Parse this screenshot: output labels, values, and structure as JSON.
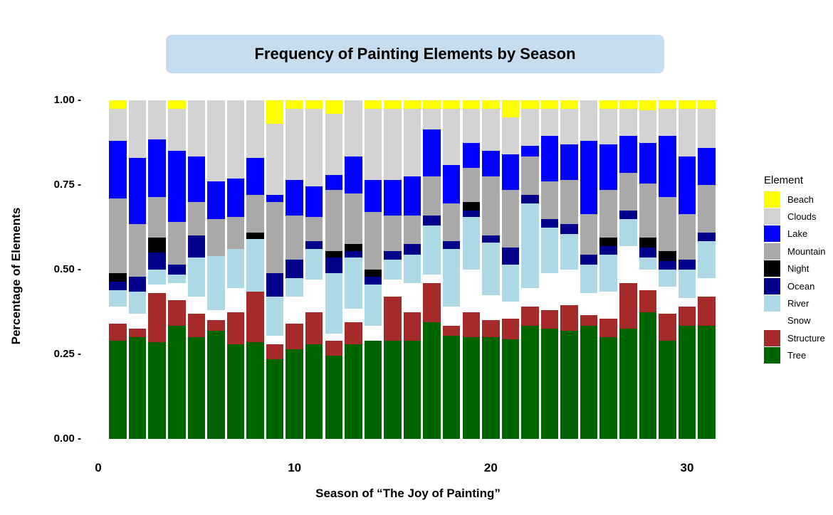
{
  "chart_data": {
    "type": "bar",
    "stacked": true,
    "normalized": true,
    "title": "Frequency of Painting Elements by Season",
    "xlabel": "Season of “The Joy of Painting”",
    "ylabel": "Percentage of Elements",
    "ylim": [
      0,
      1
    ],
    "xlim": [
      0,
      31
    ],
    "yticks": [
      "0.00",
      "0.25",
      "0.50",
      "0.75",
      "1.00"
    ],
    "xticks": [
      "0",
      "10",
      "20",
      "30"
    ],
    "grid": false,
    "legend_title": "Element",
    "legend_position": "right",
    "elements": [
      "Tree",
      "Structure",
      "Snow",
      "River",
      "Ocean",
      "Night",
      "Mountain",
      "Lake",
      "Clouds",
      "Beach"
    ],
    "legend_order": [
      "Beach",
      "Clouds",
      "Lake",
      "Mountain",
      "Night",
      "Ocean",
      "River",
      "Snow",
      "Structure",
      "Tree"
    ],
    "colors": {
      "Beach": "#ffff00",
      "Clouds": "#d3d3d3",
      "Lake": "#0000ff",
      "Mountain": "#a9a9a9",
      "Night": "#000000",
      "Ocean": "#00008b",
      "River": "#add8e6",
      "Snow": "#ffffff",
      "Structure": "#a52a2a",
      "Tree": "#006400"
    },
    "categories": [
      1,
      2,
      3,
      4,
      5,
      6,
      7,
      8,
      9,
      10,
      11,
      12,
      13,
      14,
      15,
      16,
      17,
      18,
      19,
      20,
      21,
      22,
      23,
      24,
      25,
      26,
      27,
      28,
      29,
      30,
      31
    ],
    "series": [
      {
        "name": "Tree",
        "values": [
          0.29,
          0.3,
          0.285,
          0.335,
          0.3,
          0.32,
          0.28,
          0.285,
          0.235,
          0.265,
          0.28,
          0.245,
          0.28,
          0.29,
          0.29,
          0.29,
          0.345,
          0.305,
          0.3,
          0.3,
          0.295,
          0.335,
          0.325,
          0.32,
          0.335,
          0.3,
          0.325,
          0.375,
          0.29,
          0.335,
          0.335
        ]
      },
      {
        "name": "Structure",
        "values": [
          0.05,
          0.025,
          0.145,
          0.075,
          0.07,
          0.03,
          0.095,
          0.15,
          0.045,
          0.075,
          0.095,
          0.045,
          0.065,
          0.0,
          0.13,
          0.085,
          0.115,
          0.03,
          0.075,
          0.05,
          0.06,
          0.055,
          0.055,
          0.075,
          0.03,
          0.055,
          0.135,
          0.065,
          0.08,
          0.055,
          0.085
        ]
      },
      {
        "name": "Snow",
        "values": [
          0.05,
          0.045,
          0.025,
          0.05,
          0.05,
          0.03,
          0.07,
          0.0,
          0.025,
          0.08,
          0.095,
          0.02,
          0.04,
          0.045,
          0.05,
          0.085,
          0.025,
          0.055,
          0.125,
          0.075,
          0.05,
          0.055,
          0.11,
          0.105,
          0.065,
          0.08,
          0.11,
          0.06,
          0.08,
          0.025,
          0.055
        ]
      },
      {
        "name": "River",
        "values": [
          0.05,
          0.065,
          0.045,
          0.025,
          0.115,
          0.16,
          0.115,
          0.155,
          0.115,
          0.055,
          0.09,
          0.18,
          0.15,
          0.12,
          0.06,
          0.085,
          0.145,
          0.17,
          0.155,
          0.155,
          0.11,
          0.25,
          0.135,
          0.105,
          0.085,
          0.11,
          0.08,
          0.035,
          0.05,
          0.085,
          0.11
        ]
      },
      {
        "name": "Ocean",
        "values": [
          0.025,
          0.045,
          0.05,
          0.03,
          0.065,
          0.0,
          0.0,
          0.0,
          0.07,
          0.055,
          0.025,
          0.045,
          0.02,
          0.025,
          0.025,
          0.03,
          0.03,
          0.025,
          0.02,
          0.02,
          0.05,
          0.025,
          0.025,
          0.03,
          0.03,
          0.025,
          0.025,
          0.03,
          0.025,
          0.03,
          0.025
        ]
      },
      {
        "name": "Night",
        "values": [
          0.025,
          0.0,
          0.045,
          0.0,
          0.0,
          0.0,
          0.0,
          0.02,
          0.0,
          0.0,
          0.0,
          0.02,
          0.02,
          0.02,
          0.0,
          0.0,
          0.0,
          0.0,
          0.025,
          0.0,
          0.0,
          0.0,
          0.0,
          0.0,
          0.0,
          0.025,
          0.0,
          0.03,
          0.03,
          0.0,
          0.0
        ]
      },
      {
        "name": "Mountain",
        "values": [
          0.22,
          0.155,
          0.12,
          0.125,
          0.1,
          0.11,
          0.095,
          0.11,
          0.21,
          0.13,
          0.07,
          0.18,
          0.15,
          0.17,
          0.105,
          0.085,
          0.115,
          0.11,
          0.1,
          0.175,
          0.17,
          0.115,
          0.11,
          0.13,
          0.12,
          0.14,
          0.11,
          0.16,
          0.16,
          0.135,
          0.14
        ]
      },
      {
        "name": "Lake",
        "values": [
          0.17,
          0.195,
          0.17,
          0.21,
          0.135,
          0.11,
          0.115,
          0.11,
          0.02,
          0.105,
          0.09,
          0.045,
          0.11,
          0.095,
          0.105,
          0.115,
          0.14,
          0.115,
          0.075,
          0.075,
          0.105,
          0.03,
          0.135,
          0.105,
          0.215,
          0.135,
          0.11,
          0.12,
          0.18,
          0.17,
          0.11
        ]
      },
      {
        "name": "Clouds",
        "values": [
          0.095,
          0.17,
          0.115,
          0.125,
          0.165,
          0.24,
          0.23,
          0.17,
          0.21,
          0.21,
          0.23,
          0.18,
          0.165,
          0.21,
          0.21,
          0.2,
          0.06,
          0.165,
          0.1,
          0.125,
          0.11,
          0.11,
          0.08,
          0.105,
          0.12,
          0.105,
          0.08,
          0.095,
          0.08,
          0.14,
          0.115
        ]
      },
      {
        "name": "Beach",
        "values": [
          0.025,
          0.0,
          0.0,
          0.025,
          0.0,
          0.0,
          0.0,
          0.0,
          0.07,
          0.025,
          0.025,
          0.04,
          0.0,
          0.025,
          0.025,
          0.025,
          0.025,
          0.025,
          0.025,
          0.025,
          0.05,
          0.025,
          0.025,
          0.025,
          0.0,
          0.025,
          0.025,
          0.03,
          0.025,
          0.025,
          0.025
        ]
      }
    ]
  }
}
